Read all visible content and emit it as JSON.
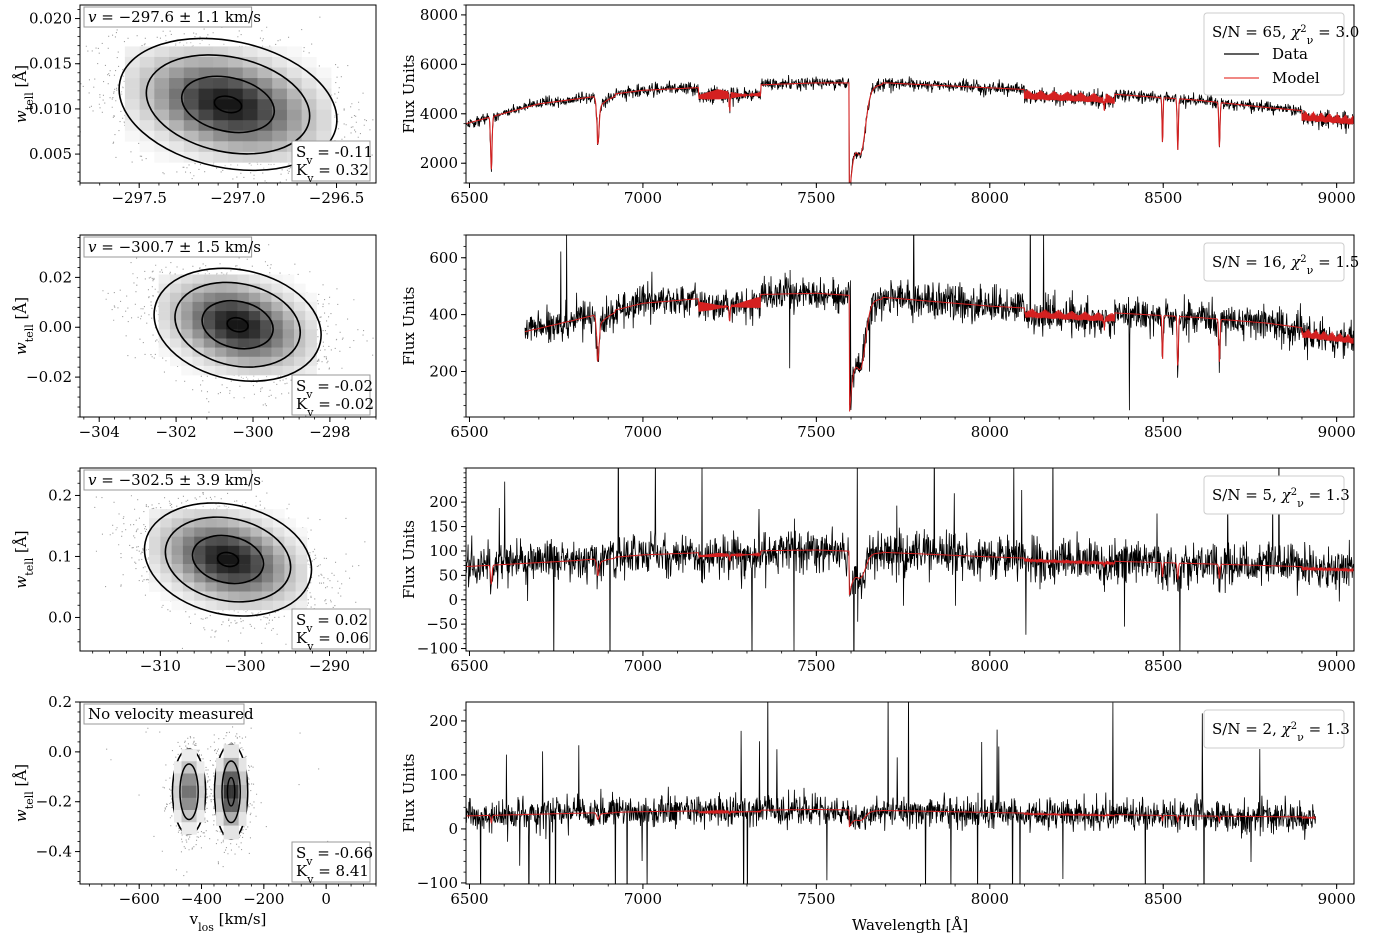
{
  "figure": {
    "left_xlabel": "v_los [km/s]",
    "right_xlabel": "Wavelength [Å]",
    "left_ylabel": "w_tell [Å]",
    "right_ylabel": "Flux Units",
    "legend": [
      {
        "label": "Data",
        "color": "#000000"
      },
      {
        "label": "Model",
        "color": "#e8403a"
      }
    ]
  },
  "chart_data": [
    {
      "type": "scatter",
      "panel": "row1-left",
      "xlabel": "v_los [km/s]",
      "ylabel": "w_tell [Å]",
      "xlim": [
        -297.8,
        -296.3
      ],
      "ylim": [
        0.0018,
        0.0215
      ],
      "xticks": [
        -297.5,
        -297.0,
        -296.5
      ],
      "xtick_labels": [
        "−297.5",
        "−297.0",
        "−296.5"
      ],
      "yticks": [
        0.005,
        0.01,
        0.015,
        0.02
      ],
      "ytick_labels": [
        "0.005",
        "0.010",
        "0.015",
        "0.020"
      ],
      "center": [
        -297.05,
        0.0105
      ],
      "spread": [
        0.28,
        0.0035
      ],
      "rho": -0.3,
      "annotation": "v = −297.6 ± 1.1 km/s",
      "stats": [
        "S_v = -0.11",
        "K_v = 0.32"
      ],
      "bimodal": false
    },
    {
      "type": "scatter",
      "panel": "row2-left",
      "xlabel": "v_los [km/s]",
      "ylabel": "w_tell [Å]",
      "xlim": [
        -304.5,
        -296.8
      ],
      "ylim": [
        -0.036,
        0.037
      ],
      "xticks": [
        -304,
        -302,
        -300,
        -298
      ],
      "xtick_labels": [
        "−304",
        "−302",
        "−300",
        "−298"
      ],
      "yticks": [
        -0.02,
        0.0,
        0.02
      ],
      "ytick_labels": [
        "−0.02",
        "0.00",
        "0.02"
      ],
      "center": [
        -300.4,
        0.001
      ],
      "spread": [
        1.1,
        0.011
      ],
      "rho": -0.3,
      "annotation": "v = −300.7 ± 1.5 km/s",
      "stats": [
        "S_v = -0.02",
        "K_v = -0.02"
      ],
      "bimodal": false
    },
    {
      "type": "scatter",
      "panel": "row3-left",
      "xlabel": "v_los [km/s]",
      "ylabel": "w_tell [Å]",
      "xlim": [
        -319.5,
        -284.5
      ],
      "ylim": [
        -0.055,
        0.245
      ],
      "xticks": [
        -310,
        -300,
        -290
      ],
      "xtick_labels": [
        "−310",
        "−300",
        "−290"
      ],
      "yticks": [
        0.0,
        0.1,
        0.2
      ],
      "ytick_labels": [
        "0.0",
        "0.1",
        "0.2"
      ],
      "center": [
        -302.0,
        0.095
      ],
      "spread": [
        5.0,
        0.045
      ],
      "rho": -0.3,
      "annotation": "v = −302.5 ± 3.9 km/s",
      "stats": [
        "S_v = 0.02",
        "K_v = 0.06"
      ],
      "bimodal": false
    },
    {
      "type": "scatter",
      "panel": "row4-left",
      "xlabel": "v_los [km/s]",
      "ylabel": "w_tell [Å]",
      "xlim": [
        -790,
        160
      ],
      "ylim": [
        -0.53,
        0.2
      ],
      "xticks": [
        -600,
        -400,
        -200,
        0
      ],
      "xtick_labels": [
        "−600",
        "−400",
        "−200",
        "0"
      ],
      "yticks": [
        -0.4,
        -0.2,
        0.0,
        0.2
      ],
      "ytick_labels": [
        "−0.4",
        "−0.2",
        "0.0",
        "0.2"
      ],
      "center": [
        -330,
        -0.16
      ],
      "spread": [
        50,
        0.08
      ],
      "rho": 0,
      "annotation": "No velocity measured",
      "stats": [
        "S_v = -0.66",
        "K_v = 8.41"
      ],
      "bimodal": true
    },
    {
      "type": "line",
      "panel": "row1-right",
      "xlabel": "Wavelength [Å]",
      "ylabel": "Flux Units",
      "xlim": [
        6490,
        9050
      ],
      "ylim": [
        1200,
        8400
      ],
      "xticks": [
        6500,
        7000,
        7500,
        8000,
        8500,
        9000
      ],
      "xtick_labels": [
        "6500",
        "7000",
        "7500",
        "8000",
        "8500",
        "9000"
      ],
      "yticks": [
        2000,
        4000,
        6000,
        8000
      ],
      "ytick_labels": [
        "2000",
        "4000",
        "6000",
        "8000"
      ],
      "x_start": 6490,
      "x_end": 9050,
      "continuum": [
        [
          6490,
          3600
        ],
        [
          6700,
          4400
        ],
        [
          7000,
          4950
        ],
        [
          7300,
          5150
        ],
        [
          7500,
          5250
        ],
        [
          7700,
          5250
        ],
        [
          8000,
          5050
        ],
        [
          8300,
          4850
        ],
        [
          8600,
          4550
        ],
        [
          8800,
          4250
        ],
        [
          9050,
          3950
        ]
      ],
      "noise": 120,
      "label": "S/N = 65, χ²_ν = 3.0",
      "show_legend": true,
      "series": [
        {
          "name": "Data",
          "color": "#000000"
        },
        {
          "name": "Model",
          "color": "#e8403a"
        }
      ]
    },
    {
      "type": "line",
      "panel": "row2-right",
      "xlabel": "Wavelength [Å]",
      "ylabel": "Flux Units",
      "xlim": [
        6490,
        9050
      ],
      "ylim": [
        40,
        680
      ],
      "xticks": [
        6500,
        7000,
        7500,
        8000,
        8500,
        9000
      ],
      "xtick_labels": [
        "6500",
        "7000",
        "7500",
        "8000",
        "8500",
        "9000"
      ],
      "yticks": [
        200,
        400,
        600
      ],
      "ytick_labels": [
        "200",
        "400",
        "600"
      ],
      "x_start": 6660,
      "x_end": 9050,
      "continuum": [
        [
          6660,
          340
        ],
        [
          6800,
          380
        ],
        [
          7000,
          440
        ],
        [
          7300,
          470
        ],
        [
          7500,
          475
        ],
        [
          7700,
          460
        ],
        [
          8000,
          430
        ],
        [
          8300,
          410
        ],
        [
          8600,
          390
        ],
        [
          8800,
          370
        ],
        [
          9050,
          330
        ]
      ],
      "noise": 30,
      "label": "S/N = 16, χ²_ν = 1.5",
      "show_legend": false,
      "series": [
        {
          "name": "Data",
          "color": "#000000"
        },
        {
          "name": "Model",
          "color": "#e8403a"
        }
      ]
    },
    {
      "type": "line",
      "panel": "row3-right",
      "xlabel": "Wavelength [Å]",
      "ylabel": "Flux Units",
      "xlim": [
        6490,
        9050
      ],
      "ylim": [
        -105,
        270
      ],
      "xticks": [
        6500,
        7000,
        7500,
        8000,
        8500,
        9000
      ],
      "xtick_labels": [
        "6500",
        "7000",
        "7500",
        "8000",
        "8500",
        "9000"
      ],
      "yticks": [
        -100,
        -50,
        0,
        50,
        100,
        150,
        200
      ],
      "ytick_labels": [
        "−100",
        "−50",
        "0",
        "50",
        "100",
        "150",
        "200"
      ],
      "x_start": 6490,
      "x_end": 9050,
      "continuum": [
        [
          6490,
          68
        ],
        [
          6800,
          80
        ],
        [
          7000,
          92
        ],
        [
          7300,
          100
        ],
        [
          7500,
          102
        ],
        [
          7700,
          97
        ],
        [
          8000,
          88
        ],
        [
          8300,
          80
        ],
        [
          8600,
          74
        ],
        [
          9050,
          65
        ]
      ],
      "noise": 22,
      "label": "S/N = 5, χ²_ν = 1.3",
      "show_legend": false,
      "series": [
        {
          "name": "Data",
          "color": "#000000"
        },
        {
          "name": "Model",
          "color": "#e8403a"
        }
      ]
    },
    {
      "type": "line",
      "panel": "row4-right",
      "xlabel": "Wavelength [Å]",
      "ylabel": "Flux Units",
      "xlim": [
        6490,
        9050
      ],
      "ylim": [
        -102,
        235
      ],
      "xticks": [
        6500,
        7000,
        7500,
        8000,
        8500,
        9000
      ],
      "xtick_labels": [
        "6500",
        "7000",
        "7500",
        "8000",
        "8500",
        "9000"
      ],
      "yticks": [
        -100,
        0,
        100,
        200
      ],
      "ytick_labels": [
        "−100",
        "0",
        "100",
        "200"
      ],
      "x_start": 6490,
      "x_end": 8940,
      "continuum": [
        [
          6490,
          24
        ],
        [
          7000,
          32
        ],
        [
          7500,
          36
        ],
        [
          7800,
          33
        ],
        [
          8200,
          28
        ],
        [
          8600,
          24
        ],
        [
          8940,
          22
        ]
      ],
      "noise": 14,
      "label": "S/N = 2, χ²_ν = 1.3",
      "show_legend": false,
      "series": [
        {
          "name": "Data",
          "color": "#000000"
        },
        {
          "name": "Model",
          "color": "#e8403a"
        }
      ]
    }
  ]
}
